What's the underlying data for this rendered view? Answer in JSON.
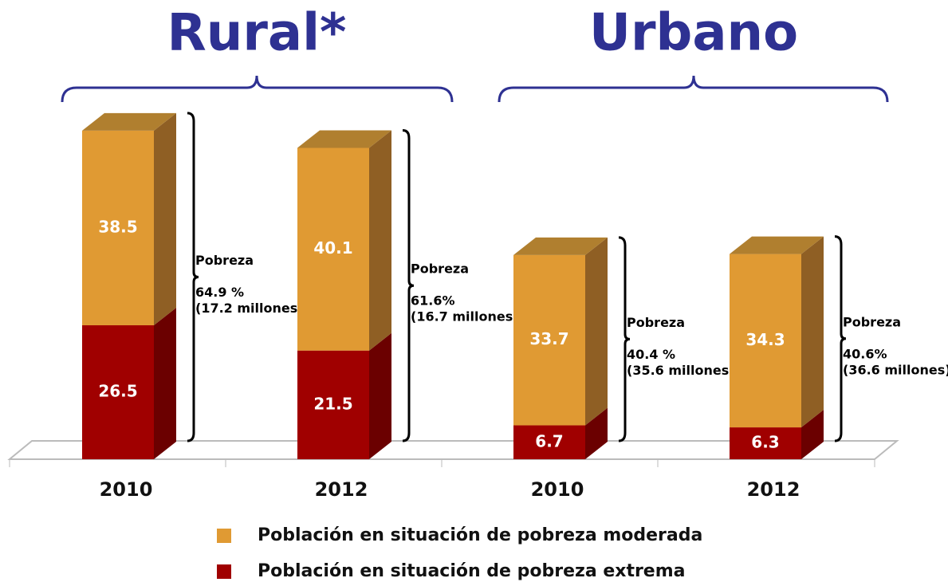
{
  "chart_data": {
    "type": "stacked-bar-3d",
    "groups": [
      "Rural*",
      "Urbano"
    ],
    "categories": [
      "2010",
      "2012",
      "2010",
      "2012"
    ],
    "series": [
      {
        "name": "Población en situación de pobreza extrema",
        "color": "#a00000",
        "side_color": "#6b0000",
        "values": [
          26.5,
          21.5,
          6.7,
          6.3
        ]
      },
      {
        "name": "Población en situación de pobreza  moderada",
        "color": "#e09a33",
        "side_color": "#8f5f24",
        "top_color": "#b07f2f",
        "values": [
          38.5,
          40.1,
          33.7,
          34.3
        ]
      }
    ],
    "annotations": [
      {
        "title": "Pobreza",
        "total": "64.9 %",
        "people": "(17.2 millones)"
      },
      {
        "title": "Pobreza",
        "total": "61.6%",
        "people": "(16.7 millones)"
      },
      {
        "title": "Pobreza",
        "total": "40.4 %",
        "people": "(35.6 millones)"
      },
      {
        "title": "Pobreza",
        "total": "40.6%",
        "people": "(36.6 millones)"
      }
    ]
  }
}
